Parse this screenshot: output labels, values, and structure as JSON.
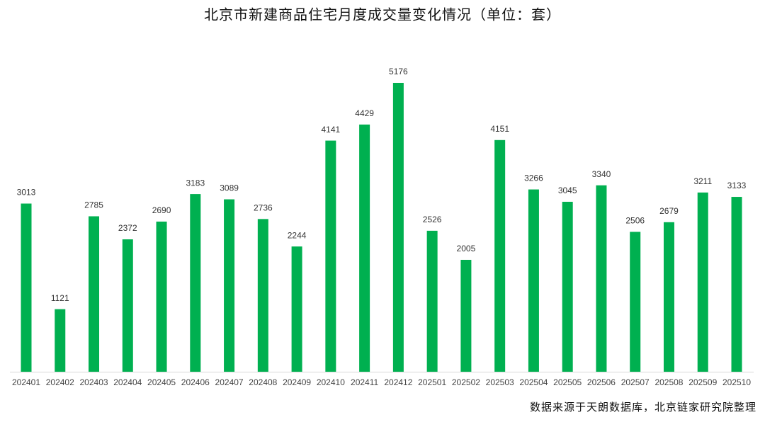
{
  "chart_data": {
    "type": "bar",
    "title": "北京市新建商品住宅月度成交量变化情况（单位：套）",
    "source": "数据来源于天朗数据库，北京链家研究院整理",
    "categories": [
      "202401",
      "202402",
      "202403",
      "202404",
      "202405",
      "202406",
      "202407",
      "202408",
      "202409",
      "202410",
      "202411",
      "202412",
      "202501",
      "202502",
      "202503",
      "202504",
      "202505",
      "202506",
      "202507",
      "202508",
      "202509",
      "202510"
    ],
    "values": [
      3013,
      1121,
      2785,
      2372,
      2690,
      3183,
      3089,
      2736,
      2244,
      4141,
      4429,
      5176,
      2526,
      2005,
      4151,
      3266,
      3045,
      3340,
      2506,
      2679,
      3211,
      3133
    ],
    "color": "#00b050"
  }
}
